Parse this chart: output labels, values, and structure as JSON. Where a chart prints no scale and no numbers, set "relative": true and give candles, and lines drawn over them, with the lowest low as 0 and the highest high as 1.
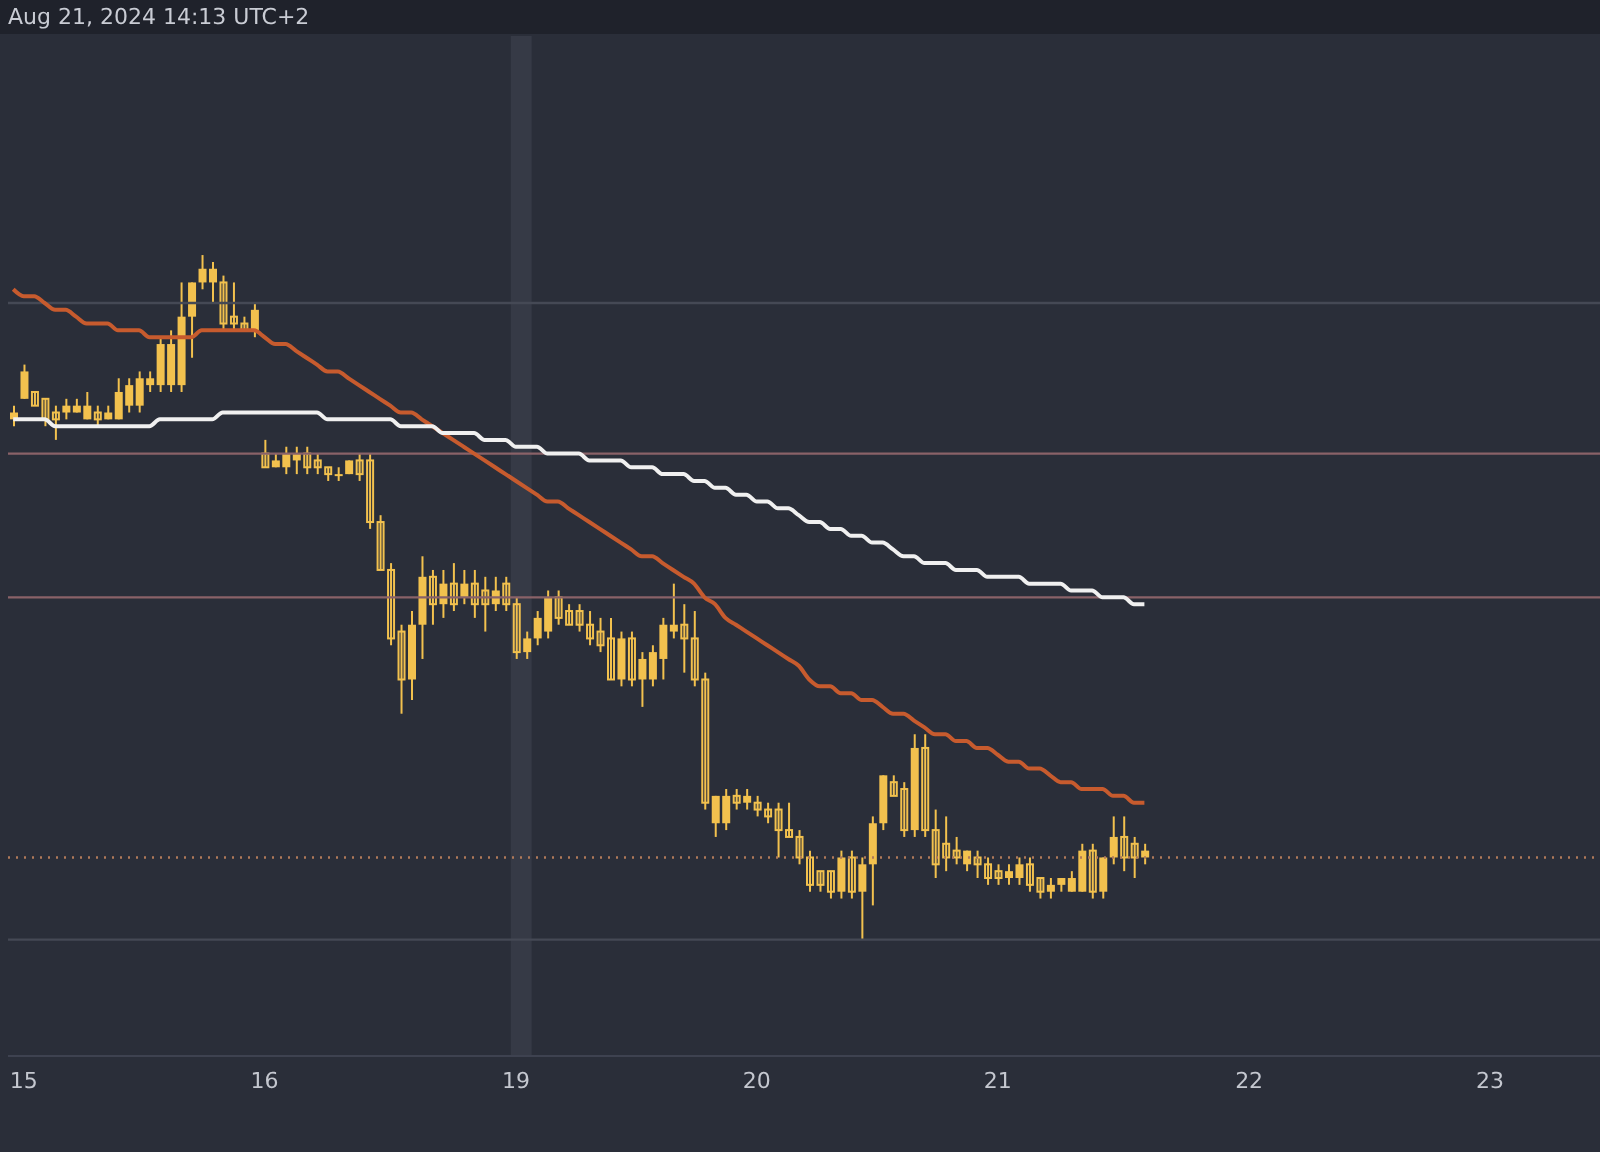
{
  "chart_data": {
    "type": "candlestick",
    "relative": true,
    "annotations": [
      "Aug 21, 2024 14:13 UTC+2"
    ],
    "categories": [
      null,
      "15",
      null,
      null,
      null,
      null,
      null,
      null,
      null,
      null,
      null,
      null,
      null,
      null,
      null,
      null,
      null,
      null,
      null,
      null,
      null,
      null,
      null,
      null,
      "16",
      null,
      null,
      null,
      null,
      null,
      null,
      null,
      null,
      null,
      null,
      null,
      null,
      null,
      null,
      null,
      null,
      null,
      null,
      null,
      null,
      null,
      null,
      null,
      "19",
      null,
      null,
      null,
      null,
      null,
      null,
      null,
      null,
      null,
      null,
      null,
      null,
      null,
      null,
      null,
      null,
      null,
      null,
      null,
      null,
      null,
      null,
      "20",
      null,
      null,
      null,
      null,
      null,
      null,
      null,
      null,
      null,
      null,
      null,
      null,
      null,
      null,
      null,
      null,
      null,
      null,
      null,
      null,
      null,
      null,
      "21",
      null,
      null,
      null,
      null,
      null,
      null,
      null,
      null,
      null,
      null,
      null,
      null,
      null,
      null,
      null,
      null,
      null,
      null,
      null,
      null,
      null,
      null,
      null,
      "22",
      null,
      null,
      null,
      null,
      null,
      null,
      null,
      null,
      null,
      null,
      null,
      null,
      null,
      null,
      null,
      null,
      null,
      null,
      null,
      null,
      null,
      null,
      "23",
      null,
      null,
      null,
      null,
      null,
      null,
      null,
      null,
      null,
      null
    ],
    "series": [
      {
        "color": "#f2c14e",
        "ohlc": [
          [
            0.76,
            0.78,
            0.75,
            0.77
          ],
          [
            0.79,
            0.84,
            0.79,
            0.83
          ],
          [
            0.8,
            0.8,
            0.78,
            0.78
          ],
          [
            0.79,
            0.79,
            0.75,
            0.76
          ],
          [
            0.77,
            0.78,
            0.73,
            0.76
          ],
          [
            0.77,
            0.79,
            0.76,
            0.78
          ],
          [
            0.77,
            0.79,
            0.77,
            0.78
          ],
          [
            0.76,
            0.8,
            0.76,
            0.78
          ],
          [
            0.77,
            0.78,
            0.75,
            0.76
          ],
          [
            0.76,
            0.78,
            0.76,
            0.77
          ],
          [
            0.76,
            0.82,
            0.76,
            0.8
          ],
          [
            0.78,
            0.82,
            0.77,
            0.81
          ],
          [
            0.78,
            0.83,
            0.77,
            0.82
          ],
          [
            0.81,
            0.83,
            0.8,
            0.82
          ],
          [
            0.81,
            0.88,
            0.8,
            0.87
          ],
          [
            0.81,
            0.89,
            0.8,
            0.87
          ],
          [
            0.81,
            0.96,
            0.8,
            0.91
          ],
          [
            0.91,
            0.96,
            0.85,
            0.96
          ],
          [
            0.96,
            1.0,
            0.95,
            0.98
          ],
          [
            0.96,
            0.99,
            0.93,
            0.98
          ],
          [
            0.96,
            0.97,
            0.89,
            0.9
          ],
          [
            0.91,
            0.96,
            0.89,
            0.9
          ],
          [
            0.9,
            0.91,
            0.89,
            0.89
          ],
          [
            0.89,
            0.93,
            0.88,
            0.92
          ],
          [
            0.71,
            0.73,
            0.69,
            0.69
          ],
          [
            0.69,
            0.71,
            0.69,
            0.7
          ],
          [
            0.69,
            0.72,
            0.68,
            0.71
          ],
          [
            0.7,
            0.72,
            0.68,
            0.71
          ],
          [
            0.71,
            0.72,
            0.68,
            0.69
          ],
          [
            0.7,
            0.71,
            0.68,
            0.69
          ],
          [
            0.69,
            0.69,
            0.67,
            0.68
          ],
          [
            0.68,
            0.69,
            0.67,
            0.68
          ],
          [
            0.68,
            0.7,
            0.68,
            0.7
          ],
          [
            0.7,
            0.71,
            0.67,
            0.68
          ],
          [
            0.7,
            0.71,
            0.6,
            0.61
          ],
          [
            0.61,
            0.62,
            0.54,
            0.54
          ],
          [
            0.54,
            0.55,
            0.43,
            0.44
          ],
          [
            0.45,
            0.46,
            0.33,
            0.38
          ],
          [
            0.38,
            0.48,
            0.35,
            0.46
          ],
          [
            0.46,
            0.56,
            0.41,
            0.53
          ],
          [
            0.53,
            0.54,
            0.46,
            0.49
          ],
          [
            0.49,
            0.54,
            0.47,
            0.52
          ],
          [
            0.52,
            0.55,
            0.48,
            0.49
          ],
          [
            0.5,
            0.54,
            0.49,
            0.52
          ],
          [
            0.52,
            0.54,
            0.47,
            0.49
          ],
          [
            0.51,
            0.53,
            0.45,
            0.49
          ],
          [
            0.49,
            0.53,
            0.48,
            0.51
          ],
          [
            0.52,
            0.53,
            0.48,
            0.49
          ],
          [
            0.49,
            0.5,
            0.41,
            0.42
          ],
          [
            0.42,
            0.45,
            0.41,
            0.44
          ],
          [
            0.44,
            0.48,
            0.43,
            0.47
          ],
          [
            0.45,
            0.51,
            0.44,
            0.5
          ],
          [
            0.5,
            0.51,
            0.46,
            0.47
          ],
          [
            0.48,
            0.49,
            0.46,
            0.46
          ],
          [
            0.48,
            0.49,
            0.45,
            0.46
          ],
          [
            0.46,
            0.48,
            0.43,
            0.44
          ],
          [
            0.45,
            0.47,
            0.42,
            0.43
          ],
          [
            0.44,
            0.47,
            0.38,
            0.38
          ],
          [
            0.38,
            0.45,
            0.37,
            0.44
          ],
          [
            0.44,
            0.45,
            0.37,
            0.38
          ],
          [
            0.38,
            0.42,
            0.34,
            0.41
          ],
          [
            0.38,
            0.43,
            0.37,
            0.42
          ],
          [
            0.41,
            0.47,
            0.38,
            0.46
          ],
          [
            0.45,
            0.52,
            0.44,
            0.46
          ],
          [
            0.46,
            0.49,
            0.39,
            0.44
          ],
          [
            0.44,
            0.48,
            0.37,
            0.38
          ],
          [
            0.38,
            0.39,
            0.19,
            0.2
          ],
          [
            0.17,
            0.21,
            0.15,
            0.21
          ],
          [
            0.17,
            0.22,
            0.16,
            0.21
          ],
          [
            0.21,
            0.22,
            0.19,
            0.2
          ],
          [
            0.2,
            0.22,
            0.19,
            0.21
          ],
          [
            0.2,
            0.21,
            0.18,
            0.19
          ],
          [
            0.19,
            0.2,
            0.17,
            0.18
          ],
          [
            0.19,
            0.2,
            0.12,
            0.16
          ],
          [
            0.16,
            0.2,
            0.15,
            0.15
          ],
          [
            0.15,
            0.16,
            0.11,
            0.12
          ],
          [
            0.12,
            0.13,
            0.07,
            0.08
          ],
          [
            0.1,
            0.1,
            0.07,
            0.08
          ],
          [
            0.1,
            0.1,
            0.06,
            0.07
          ],
          [
            0.07,
            0.13,
            0.06,
            0.12
          ],
          [
            0.12,
            0.13,
            0.06,
            0.07
          ],
          [
            0.07,
            0.12,
            0.0,
            0.11
          ],
          [
            0.11,
            0.18,
            0.05,
            0.17
          ],
          [
            0.17,
            0.24,
            0.16,
            0.24
          ],
          [
            0.23,
            0.24,
            0.21,
            0.21
          ],
          [
            0.22,
            0.23,
            0.15,
            0.16
          ],
          [
            0.16,
            0.3,
            0.15,
            0.28
          ],
          [
            0.28,
            0.3,
            0.15,
            0.16
          ],
          [
            0.16,
            0.19,
            0.09,
            0.11
          ],
          [
            0.14,
            0.18,
            0.1,
            0.12
          ],
          [
            0.13,
            0.15,
            0.11,
            0.12
          ],
          [
            0.11,
            0.13,
            0.1,
            0.13
          ],
          [
            0.12,
            0.13,
            0.09,
            0.11
          ],
          [
            0.11,
            0.12,
            0.08,
            0.09
          ],
          [
            0.1,
            0.11,
            0.08,
            0.09
          ],
          [
            0.09,
            0.11,
            0.08,
            0.1
          ],
          [
            0.09,
            0.12,
            0.08,
            0.11
          ],
          [
            0.11,
            0.12,
            0.07,
            0.08
          ],
          [
            0.09,
            0.09,
            0.06,
            0.07
          ],
          [
            0.07,
            0.09,
            0.06,
            0.08
          ],
          [
            0.08,
            0.09,
            0.07,
            0.09
          ],
          [
            0.07,
            0.1,
            0.07,
            0.09
          ],
          [
            0.07,
            0.14,
            0.07,
            0.13
          ],
          [
            0.13,
            0.14,
            0.06,
            0.07
          ],
          [
            0.07,
            0.12,
            0.06,
            0.12
          ],
          [
            0.12,
            0.18,
            0.11,
            0.15
          ],
          [
            0.15,
            0.18,
            0.1,
            0.12
          ],
          [
            0.14,
            0.15,
            0.09,
            0.12
          ],
          [
            0.12,
            0.14,
            0.11,
            0.13
          ],
          null,
          null,
          null,
          null,
          null,
          null,
          null,
          null,
          null,
          null,
          null,
          null,
          null,
          null,
          null,
          null,
          null,
          null,
          null,
          null,
          null,
          null,
          null,
          null,
          null,
          null,
          null,
          null,
          null,
          null,
          null,
          null,
          null,
          null,
          null,
          null,
          null,
          null,
          null,
          null,
          null,
          null,
          null
        ]
      },
      {
        "type": "line",
        "color": "#c75b2e",
        "values": [
          0.95,
          0.94,
          0.94,
          0.93,
          0.92,
          0.92,
          0.91,
          0.9,
          0.9,
          0.9,
          0.89,
          0.89,
          0.89,
          0.88,
          0.88,
          0.88,
          0.88,
          0.88,
          0.89,
          0.89,
          0.89,
          0.89,
          0.89,
          0.89,
          0.88,
          0.87,
          0.87,
          0.86,
          0.85,
          0.84,
          0.83,
          0.83,
          0.82,
          0.81,
          0.8,
          0.79,
          0.78,
          0.77,
          0.77,
          0.76,
          0.75,
          0.74,
          0.73,
          0.72,
          0.71,
          0.7,
          0.69,
          0.68,
          0.67,
          0.66,
          0.65,
          0.64,
          0.64,
          0.63,
          0.62,
          0.61,
          0.6,
          0.59,
          0.58,
          0.57,
          0.56,
          0.56,
          0.55,
          0.54,
          0.53,
          0.52,
          0.5,
          0.49,
          0.47,
          0.46,
          0.45,
          0.44,
          0.43,
          0.42,
          0.41,
          0.4,
          0.38,
          0.37,
          0.37,
          0.36,
          0.36,
          0.35,
          0.35,
          0.34,
          0.33,
          0.33,
          0.32,
          0.31,
          0.3,
          0.3,
          0.29,
          0.29,
          0.28,
          0.28,
          0.27,
          0.26,
          0.26,
          0.25,
          0.25,
          0.24,
          0.23,
          0.23,
          0.22,
          0.22,
          0.22,
          0.21,
          0.21,
          0.2,
          0.2,
          null,
          null,
          null,
          null,
          null,
          null,
          null,
          null,
          null,
          null,
          null,
          null,
          null,
          null,
          null,
          null,
          null,
          null,
          null,
          null,
          null,
          null,
          null,
          null,
          null,
          null,
          null,
          null,
          null,
          null,
          null,
          null,
          null,
          null,
          null,
          null,
          null,
          null,
          null,
          null,
          null,
          null,
          null
        ]
      },
      {
        "type": "line",
        "color": "#f0f0f0",
        "values": [
          0.76,
          0.76,
          0.76,
          0.76,
          0.75,
          0.75,
          0.75,
          0.75,
          0.75,
          0.75,
          0.75,
          0.75,
          0.75,
          0.75,
          0.76,
          0.76,
          0.76,
          0.76,
          0.76,
          0.76,
          0.77,
          0.77,
          0.77,
          0.77,
          0.77,
          0.77,
          0.77,
          0.77,
          0.77,
          0.77,
          0.76,
          0.76,
          0.76,
          0.76,
          0.76,
          0.76,
          0.76,
          0.75,
          0.75,
          0.75,
          0.75,
          0.74,
          0.74,
          0.74,
          0.74,
          0.73,
          0.73,
          0.73,
          0.72,
          0.72,
          0.72,
          0.71,
          0.71,
          0.71,
          0.71,
          0.7,
          0.7,
          0.7,
          0.7,
          0.69,
          0.69,
          0.69,
          0.68,
          0.68,
          0.68,
          0.67,
          0.67,
          0.66,
          0.66,
          0.65,
          0.65,
          0.64,
          0.64,
          0.63,
          0.63,
          0.62,
          0.61,
          0.61,
          0.6,
          0.6,
          0.59,
          0.59,
          0.58,
          0.58,
          0.57,
          0.56,
          0.56,
          0.55,
          0.55,
          0.55,
          0.54,
          0.54,
          0.54,
          0.53,
          0.53,
          0.53,
          0.53,
          0.52,
          0.52,
          0.52,
          0.52,
          0.51,
          0.51,
          0.51,
          0.5,
          0.5,
          0.5,
          0.49,
          0.49,
          null,
          null,
          null,
          null,
          null,
          null,
          null,
          null,
          null,
          null,
          null,
          null,
          null,
          null,
          null,
          null,
          null,
          null,
          null,
          null,
          null,
          null,
          null,
          null,
          null,
          null,
          null,
          null,
          null,
          null,
          null,
          null,
          null,
          null,
          null,
          null,
          null,
          null,
          null,
          null,
          null,
          null,
          null
        ]
      }
    ],
    "ref_lines": [
      {
        "axis": "y",
        "value": 0.93,
        "color": "#454955",
        "line_style": "solid"
      },
      {
        "axis": "y",
        "value": 0.71,
        "color": "#8a6268",
        "line_style": "solid"
      },
      {
        "axis": "y",
        "value": 0.5,
        "color": "#8a6268",
        "line_style": "solid"
      },
      {
        "axis": "y",
        "value": 0.12,
        "color": "#b07a5a",
        "line_style": "dotted"
      },
      {
        "axis": "y",
        "value": 0.0,
        "color": "#454955",
        "line_style": "solid"
      }
    ],
    "bands": [
      {
        "axis": "x",
        "from": "19",
        "to": "19",
        "color": "#363a46"
      }
    ]
  }
}
